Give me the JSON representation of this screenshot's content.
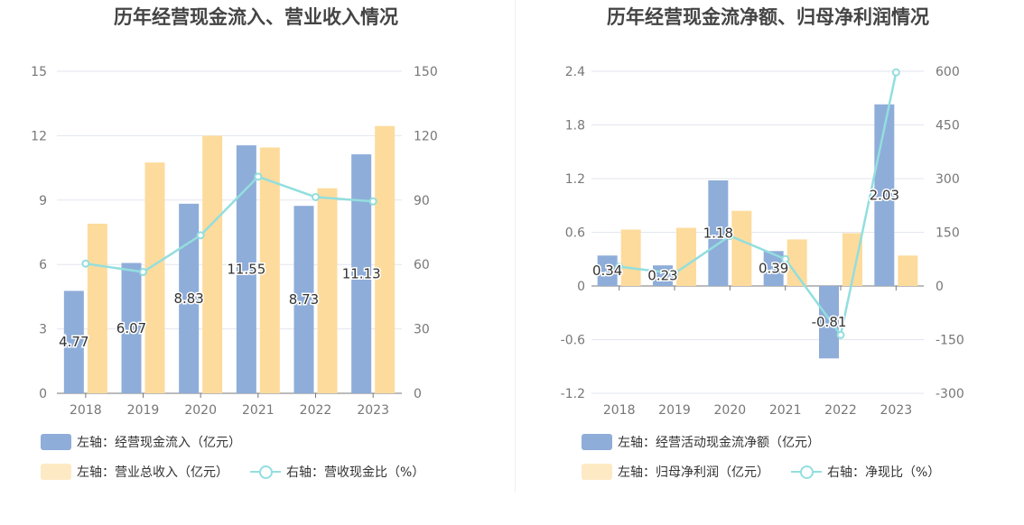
{
  "chart_data": [
    {
      "type": "bar",
      "title": "历年经营现金流入、营业收入情况",
      "categories": [
        "2018",
        "2019",
        "2020",
        "2021",
        "2022",
        "2023"
      ],
      "left_axis": {
        "ticks": [
          "0",
          "3",
          "6",
          "9",
          "12",
          "15"
        ],
        "ylim": [
          0,
          15
        ]
      },
      "right_axis": {
        "ticks": [
          "0",
          "30",
          "60",
          "90",
          "120",
          "150"
        ],
        "ylim": [
          0,
          150
        ]
      },
      "series": [
        {
          "name": "左轴：经营现金流入（亿元）",
          "kind": "bar",
          "axis": "left",
          "color": "#8eadd9",
          "values": [
            4.77,
            6.07,
            8.83,
            11.55,
            8.73,
            11.13
          ],
          "labels": [
            "4.77",
            "6.07",
            "8.83",
            "11.55",
            "8.73",
            "11.13"
          ]
        },
        {
          "name": "左轴：营业总收入（亿元）",
          "kind": "bar",
          "axis": "left",
          "color": "#fddb9c",
          "values": [
            7.9,
            10.75,
            12.0,
            11.45,
            9.55,
            12.45
          ]
        },
        {
          "name": "右轴：营收现金比（%）",
          "kind": "line",
          "axis": "right",
          "color": "#93dede",
          "values": [
            60.4,
            56.5,
            73.6,
            100.9,
            91.4,
            89.4
          ]
        }
      ]
    },
    {
      "type": "bar",
      "title": "历年经营现金流净额、归母净利润情况",
      "categories": [
        "2018",
        "2019",
        "2020",
        "2021",
        "2022",
        "2023"
      ],
      "left_axis": {
        "ticks": [
          "-1.2",
          "-0.6",
          "0",
          "0.6",
          "1.2",
          "1.8",
          "2.4"
        ],
        "ylim": [
          -1.2,
          2.4
        ]
      },
      "right_axis": {
        "ticks": [
          "-300",
          "-150",
          "0",
          "150",
          "300",
          "450",
          "600"
        ],
        "ylim": [
          -300,
          600
        ]
      },
      "series": [
        {
          "name": "左轴：经营活动现金流净额（亿元）",
          "kind": "bar",
          "axis": "left",
          "color": "#8eadd9",
          "values": [
            0.34,
            0.23,
            1.18,
            0.39,
            -0.81,
            2.03
          ],
          "labels": [
            "0.34",
            "0.23",
            "1.18",
            "0.39",
            "-0.81",
            "2.03"
          ]
        },
        {
          "name": "左轴：归母净利润（亿元）",
          "kind": "bar",
          "axis": "left",
          "color": "#fddb9c",
          "values": [
            0.63,
            0.65,
            0.84,
            0.52,
            0.59,
            0.34
          ]
        },
        {
          "name": "右轴：净现比（%）",
          "kind": "line",
          "axis": "right",
          "color": "#93dede",
          "values": [
            54,
            35,
            140,
            75,
            -137,
            597
          ]
        }
      ]
    }
  ]
}
